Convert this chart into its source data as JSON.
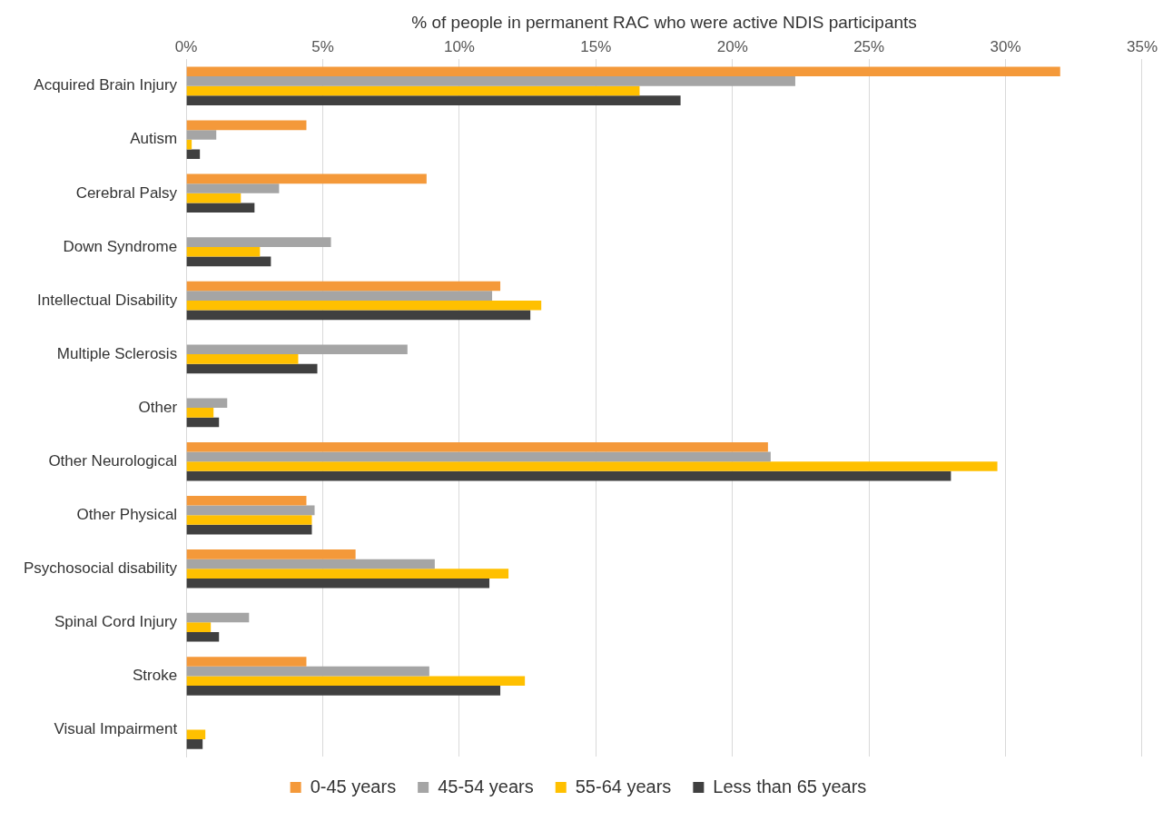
{
  "chart_data": {
    "type": "bar",
    "orientation": "horizontal",
    "xlabel": "% of people in permanent RAC who were active NDIS participants",
    "categories": [
      "Acquired Brain Injury",
      "Autism",
      "Cerebral Palsy",
      "Down Syndrome",
      "Intellectual Disability",
      "Multiple Sclerosis",
      "Other",
      "Other Neurological",
      "Other Physical",
      "Psychosocial disability",
      "Spinal Cord Injury",
      "Stroke",
      "Visual Impairment"
    ],
    "series": [
      {
        "name": "0-45 years",
        "color": "#f4993a",
        "values": [
          32.0,
          4.4,
          8.8,
          null,
          11.5,
          null,
          null,
          21.3,
          4.4,
          6.2,
          null,
          4.4,
          null
        ]
      },
      {
        "name": "45-54 years",
        "color": "#a5a5a5",
        "values": [
          22.3,
          1.1,
          3.4,
          5.3,
          11.2,
          8.1,
          1.5,
          21.4,
          4.7,
          9.1,
          2.3,
          8.9,
          null
        ]
      },
      {
        "name": "55-64 years",
        "color": "#ffc000",
        "values": [
          16.6,
          0.2,
          2.0,
          2.7,
          13.0,
          4.1,
          1.0,
          29.7,
          4.6,
          11.8,
          0.9,
          12.4,
          0.7
        ]
      },
      {
        "name": "Less than 65 years",
        "color": "#404040",
        "values": [
          18.1,
          0.5,
          2.5,
          3.1,
          12.6,
          4.8,
          1.2,
          28.0,
          4.6,
          11.1,
          1.2,
          11.5,
          0.6
        ]
      }
    ],
    "xlim": [
      0,
      35
    ],
    "xticks": [
      {
        "value": 0,
        "label": "0%"
      },
      {
        "value": 5,
        "label": "5%"
      },
      {
        "value": 10,
        "label": "10%"
      },
      {
        "value": 15,
        "label": "15%"
      },
      {
        "value": 20,
        "label": "20%"
      },
      {
        "value": 25,
        "label": "25%"
      },
      {
        "value": 30,
        "label": "30%"
      },
      {
        "value": 35,
        "label": "35%"
      }
    ],
    "grid": "x",
    "legend": "bottom"
  }
}
